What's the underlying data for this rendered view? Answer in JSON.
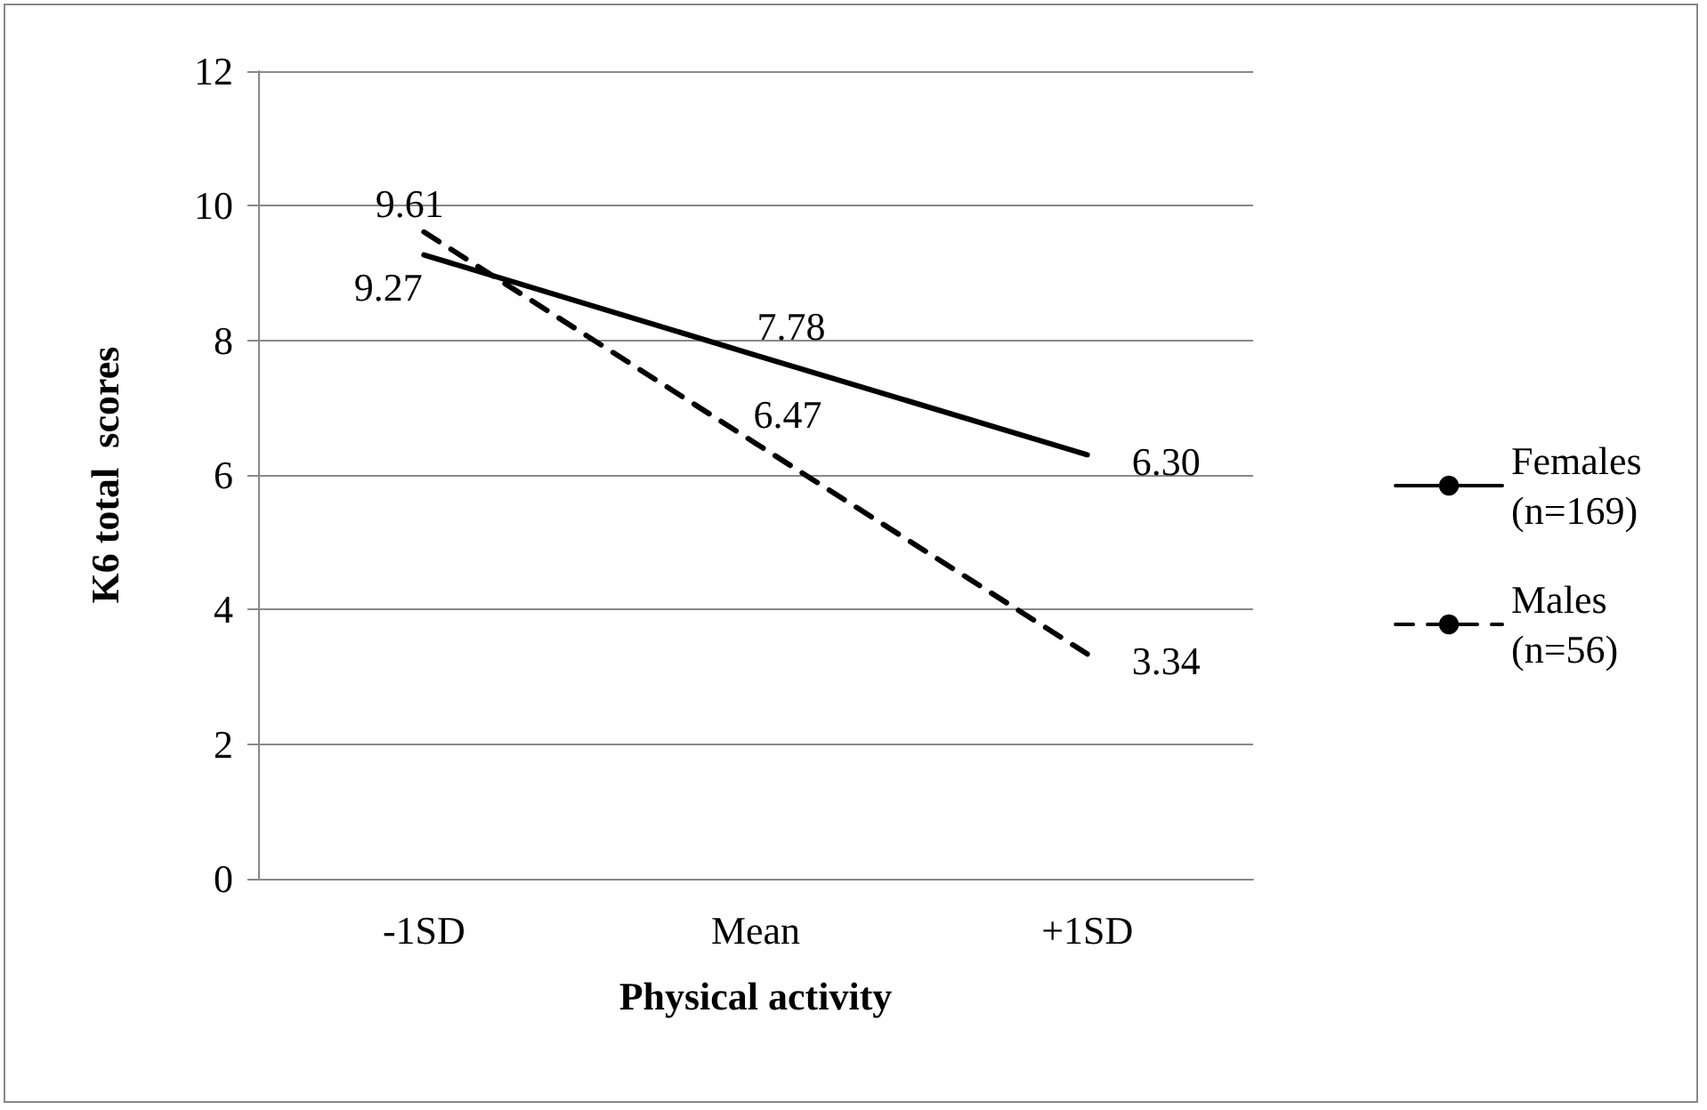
{
  "chart_data": {
    "type": "line",
    "xlabel": "Physical activity",
    "ylabel": "K6 total  scores",
    "categories": [
      "-1SD",
      "Mean",
      "+1SD"
    ],
    "series": [
      {
        "name": "Females (n=169)",
        "color": "#000000",
        "line_style": "solid",
        "values": [
          9.27,
          7.78,
          6.3
        ],
        "value_labels": [
          "9.27",
          "7.78",
          "6.30"
        ]
      },
      {
        "name": "Males (n=56)",
        "color": "#000000",
        "line_style": "dashed",
        "values": [
          9.61,
          6.47,
          3.34
        ],
        "value_labels": [
          "9.61",
          "6.47",
          "3.34"
        ]
      }
    ],
    "ylim": [
      0,
      12
    ],
    "yticks": [
      0,
      2,
      4,
      6,
      8,
      10,
      12
    ],
    "grid": "y",
    "legend": "right",
    "marker": "none"
  }
}
